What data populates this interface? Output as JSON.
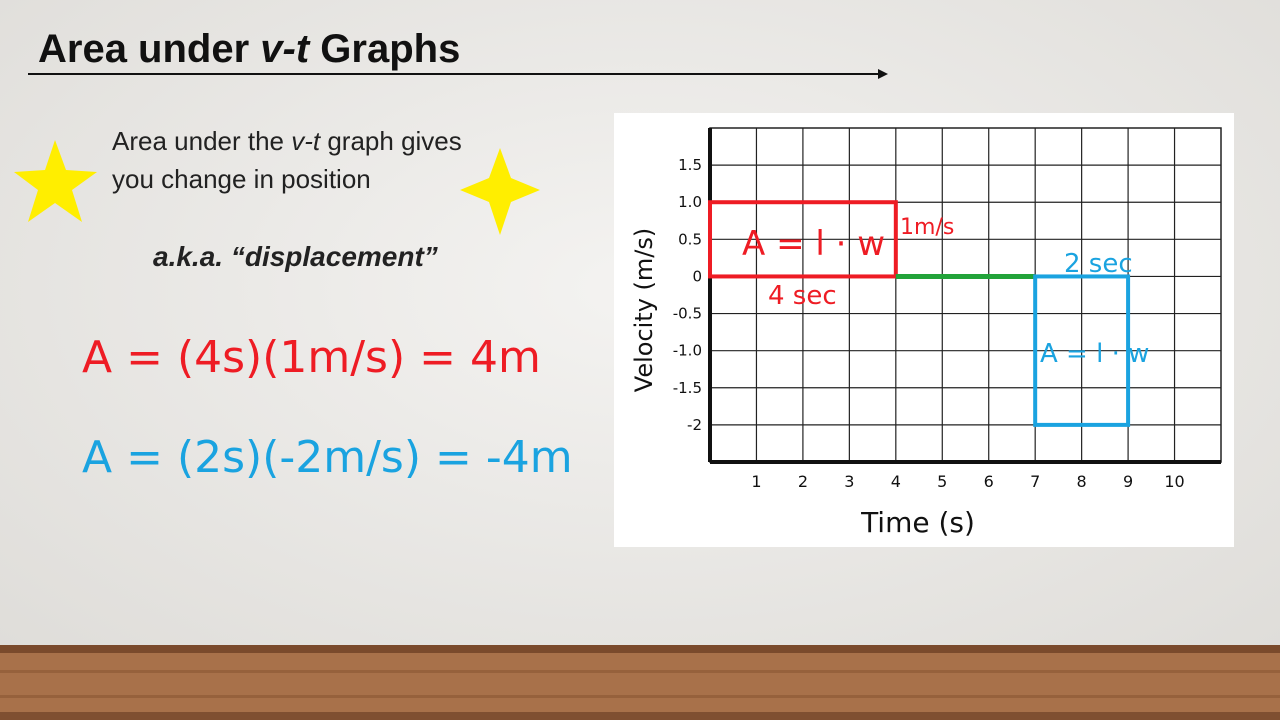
{
  "header": {
    "title": [
      "Area under ",
      "v-t",
      " Graphs"
    ]
  },
  "note": {
    "lines": [
      [
        "Area under the ",
        "v-t",
        " graph gives"
      ],
      [
        "you change in position"
      ]
    ],
    "aka": "a.k.a. “displacement”"
  },
  "equations": [
    {
      "text": "A = (4s)(1m/s) = 4m",
      "color": "#ee1c24"
    },
    {
      "text": "A = (2s)(-2m/s) = -4m",
      "color": "#1aa3e0"
    }
  ],
  "graph": {
    "x_label": "Time (s)",
    "y_label": "Velocity (m/s)",
    "xlim": [
      0,
      11
    ],
    "ylim": [
      -2.5,
      2
    ],
    "xticks": [
      1,
      2,
      3,
      4,
      5,
      6,
      7,
      8,
      9,
      10
    ],
    "yticks": [
      1.5,
      {
        "value": 1,
        "label": "1.0"
      },
      0.5,
      0,
      -0.5,
      {
        "value": -1,
        "label": "-1.0"
      },
      -1.5,
      -2
    ],
    "shapes": [
      {
        "kind": "rect",
        "t0": 0,
        "t1": 4,
        "v0": 0,
        "v1": 1,
        "color": "#ee1c24"
      },
      {
        "kind": "line",
        "t0": 4,
        "t1": 7,
        "v0": 0,
        "v1": 0,
        "color": "#22a33a"
      },
      {
        "kind": "rect",
        "t0": 7,
        "t1": 9,
        "v0": -2,
        "v1": 0,
        "color": "#1aa3e0"
      }
    ],
    "annotations": [
      "A = l · w",
      "1m/s",
      "4 sec",
      "2 sec",
      "A = l · w"
    ]
  }
}
